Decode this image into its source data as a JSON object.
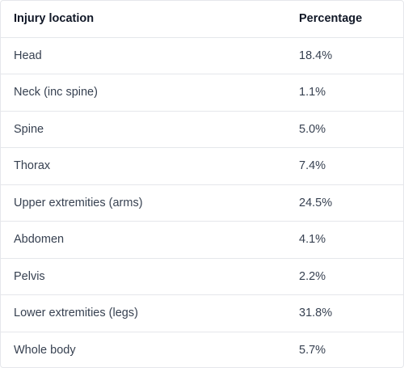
{
  "table": {
    "headers": [
      "Injury location",
      "Percentage"
    ],
    "rows": [
      {
        "location": "Head",
        "percentage": "18.4%"
      },
      {
        "location": "Neck (inc spine)",
        "percentage": "1.1%"
      },
      {
        "location": "Spine",
        "percentage": "5.0%"
      },
      {
        "location": "Thorax",
        "percentage": "7.4%"
      },
      {
        "location": "Upper extremities (arms)",
        "percentage": "24.5%"
      },
      {
        "location": "Abdomen",
        "percentage": "4.1%"
      },
      {
        "location": "Pelvis",
        "percentage": "2.2%"
      },
      {
        "location": "Lower extremities (legs)",
        "percentage": "31.8%"
      },
      {
        "location": "Whole body",
        "percentage": "5.7%"
      }
    ]
  }
}
